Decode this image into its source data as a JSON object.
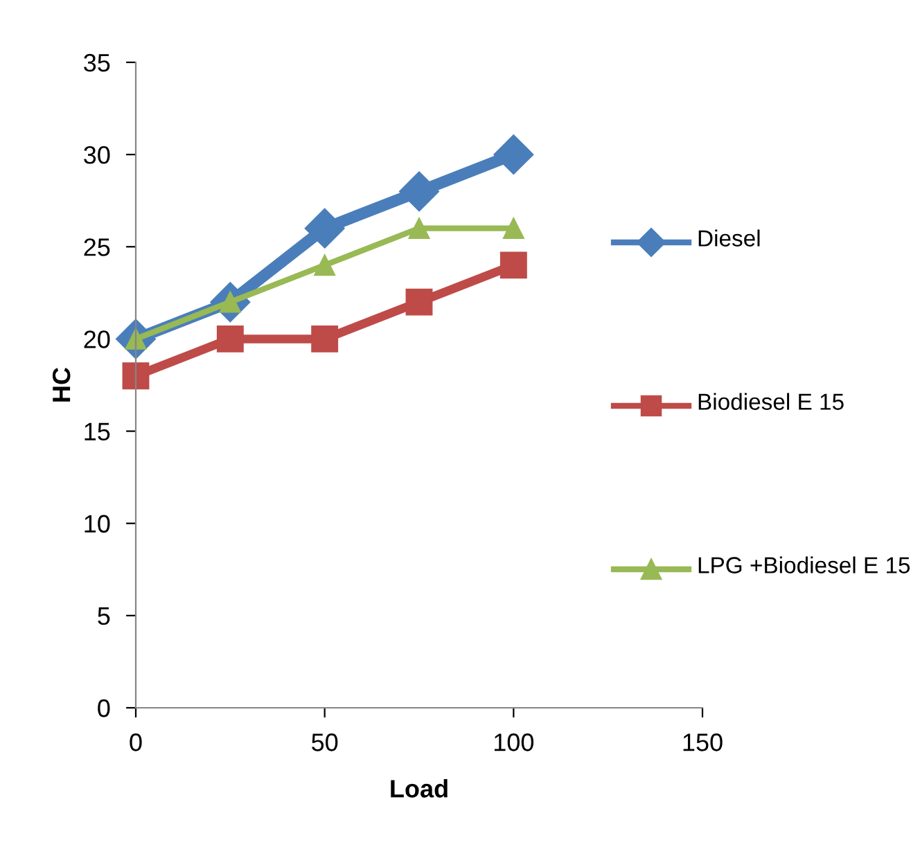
{
  "chart_data": {
    "type": "line",
    "xlabel": "Load",
    "ylabel": "HC",
    "x": [
      0,
      25,
      50,
      75,
      100
    ],
    "series": [
      {
        "name": "Diesel",
        "color": "#4a7ebb",
        "marker": "diamond",
        "values": [
          20,
          22,
          26,
          28,
          30
        ]
      },
      {
        "name": "Biodiesel E 15",
        "color": "#be4b48",
        "marker": "square",
        "values": [
          18,
          20,
          20,
          22,
          24
        ]
      },
      {
        "name": "LPG +Biodiesel E 15",
        "color": "#98b954",
        "marker": "triangle",
        "values": [
          20,
          22,
          24,
          26,
          26
        ]
      }
    ],
    "xlim": [
      0,
      150
    ],
    "xticks": [
      0,
      50,
      100,
      150
    ],
    "ylim": [
      0,
      35
    ],
    "yticks": [
      0,
      5,
      10,
      15,
      20,
      25,
      30,
      35
    ],
    "grid": false,
    "legend": "right"
  }
}
